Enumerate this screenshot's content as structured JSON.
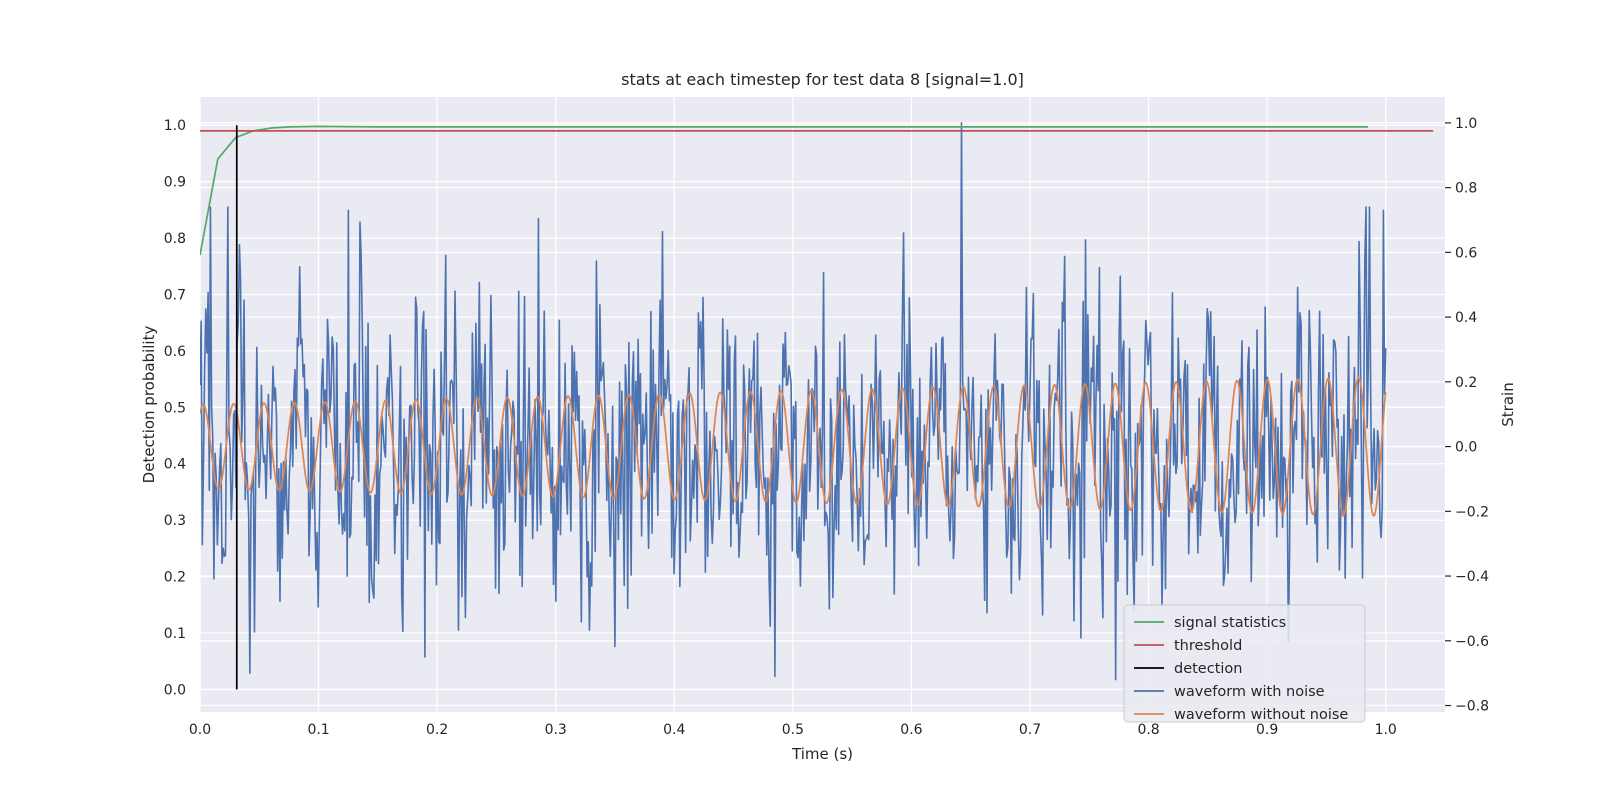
{
  "chart_data": {
    "type": "line",
    "title": "stats at each timestep for test data 8 [signal=1.0]",
    "xlabel": "Time (s)",
    "ylabel_left": "Detection probability",
    "ylabel_right": "Strain",
    "xlim": [
      0.0,
      1.05
    ],
    "ylim_left": [
      -0.04,
      1.05
    ],
    "ylim_right": [
      -0.82,
      1.08
    ],
    "x_ticks": [
      "0.0",
      "0.1",
      "0.2",
      "0.3",
      "0.4",
      "0.5",
      "0.6",
      "0.7",
      "0.8",
      "0.9",
      "1.0"
    ],
    "y_ticks_left": [
      "0.0",
      "0.1",
      "0.2",
      "0.3",
      "0.4",
      "0.5",
      "0.6",
      "0.7",
      "0.8",
      "0.9",
      "1.0"
    ],
    "y_ticks_right": [
      "−0.8",
      "−0.6",
      "−0.4",
      "−0.2",
      "0.0",
      "0.2",
      "0.4",
      "0.6",
      "0.8",
      "1.0"
    ],
    "grid": true,
    "legend_position": "lower-right",
    "series": [
      {
        "name": "signal statistics",
        "axis": "left",
        "color": "#55a868",
        "x": [
          0.0,
          0.015,
          0.03,
          0.045,
          0.06,
          0.075,
          0.1,
          0.15,
          0.3,
          0.6,
          0.9,
          0.985
        ],
        "y": [
          0.77,
          0.94,
          0.978,
          0.99,
          0.995,
          0.997,
          0.998,
          0.997,
          0.997,
          0.997,
          0.997,
          0.997
        ]
      },
      {
        "name": "threshold",
        "axis": "left",
        "color": "#c44e52",
        "x": [
          0.0,
          1.04
        ],
        "y": [
          0.99,
          0.99
        ]
      },
      {
        "name": "detection",
        "axis": "left",
        "color": "#000000",
        "x": [
          0.031,
          0.031
        ],
        "y": [
          0.0,
          1.0
        ]
      },
      {
        "name": "waveform with noise",
        "axis": "right",
        "color": "#4c72b0",
        "kind": "noisy",
        "x_range": [
          0.0,
          1.0
        ],
        "samples": 1024,
        "approx_std": 0.26,
        "notable_points": [
          {
            "x": 0.642,
            "y": 1.0
          },
          {
            "x": 0.125,
            "y": 0.73
          },
          {
            "x": 0.023,
            "y": 0.74
          },
          {
            "x": 0.772,
            "y": -0.72
          },
          {
            "x": 0.485,
            "y": -0.71
          },
          {
            "x": 0.19,
            "y": -0.65
          },
          {
            "x": 0.042,
            "y": -0.7
          },
          {
            "x": 0.998,
            "y": 0.73
          }
        ]
      },
      {
        "name": "waveform without noise",
        "axis": "right",
        "color": "#dd8452",
        "kind": "sinusoid",
        "x_range": [
          0.0,
          1.0
        ],
        "amplitude_start": 0.13,
        "amplitude_end": 0.215,
        "cycles": 39
      }
    ]
  }
}
